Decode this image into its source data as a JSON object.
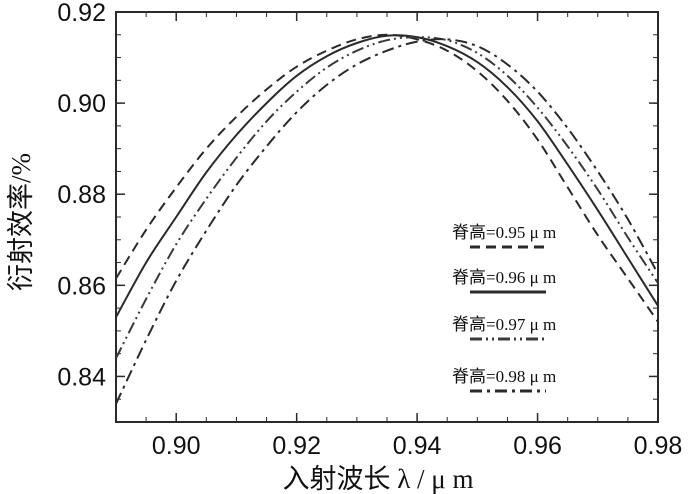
{
  "chart_data": {
    "type": "line",
    "xlabel": "入射波长 λ / μ m",
    "ylabel": "衍射效率/%",
    "xlim": [
      0.89,
      0.98
    ],
    "ylim": [
      0.83,
      0.92
    ],
    "x_ticks": [
      "0.90",
      "0.92",
      "0.94",
      "0.96",
      "0.98"
    ],
    "y_ticks": [
      "0.84",
      "0.86",
      "0.88",
      "0.90",
      "0.92"
    ],
    "grid": false,
    "legend_position": "right",
    "x": [
      0.89,
      0.895,
      0.9,
      0.905,
      0.91,
      0.915,
      0.92,
      0.925,
      0.93,
      0.935,
      0.94,
      0.945,
      0.95,
      0.955,
      0.96,
      0.965,
      0.97,
      0.975,
      0.98
    ],
    "series": [
      {
        "name": "脊高=0.95 μ m",
        "dash": "dashed",
        "color": "#2a2a2a",
        "values": [
          0.8615,
          0.8722,
          0.8815,
          0.89,
          0.897,
          0.903,
          0.908,
          0.9115,
          0.914,
          0.915,
          0.914,
          0.9115,
          0.907,
          0.9005,
          0.892,
          0.8815,
          0.871,
          0.8615,
          0.852
        ]
      },
      {
        "name": "脊高=0.96 μ m",
        "dash": "solid",
        "color": "#2a2a2a",
        "values": [
          0.853,
          0.865,
          0.875,
          0.8848,
          0.893,
          0.9,
          0.906,
          0.9103,
          0.9132,
          0.9148,
          0.9145,
          0.9125,
          0.909,
          0.9035,
          0.896,
          0.8865,
          0.8765,
          0.866,
          0.8555
        ]
      },
      {
        "name": "脊高=0.97 μ m",
        "dash": "dash-dot-dot",
        "color": "#3a3a3a",
        "values": [
          0.844,
          0.857,
          0.869,
          0.879,
          0.888,
          0.896,
          0.9025,
          0.9078,
          0.9115,
          0.9138,
          0.9145,
          0.9138,
          0.911,
          0.906,
          0.899,
          0.8905,
          0.881,
          0.8705,
          0.8605
        ]
      },
      {
        "name": "脊高=0.98 μ m",
        "dash": "dash-dot",
        "color": "#2a2a2a",
        "values": [
          0.834,
          0.848,
          0.861,
          0.872,
          0.882,
          0.8905,
          0.898,
          0.904,
          0.9085,
          0.9115,
          0.9135,
          0.914,
          0.9125,
          0.9085,
          0.9025,
          0.8945,
          0.885,
          0.8745,
          0.8625
        ]
      }
    ]
  }
}
